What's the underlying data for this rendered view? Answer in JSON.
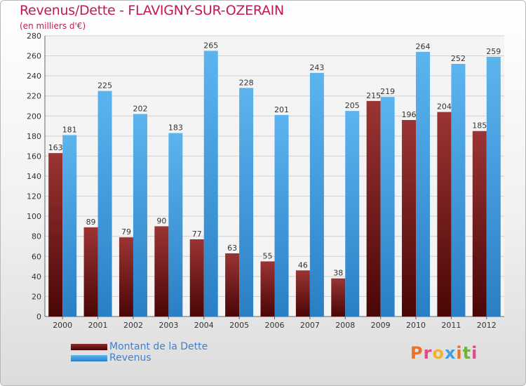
{
  "title": "Revenus/Dette - FLAVIGNY-SUR-OZERAIN",
  "subtitle": "(en milliers d'€)",
  "brand": {
    "text": "Proxiti",
    "colors": [
      "#e8742a",
      "#e04a8a",
      "#f1b52a",
      "#3f9fe0",
      "#e8742a",
      "#6cb33f",
      "#e04a8a"
    ]
  },
  "colors": {
    "dette": "#7a1a1a",
    "revenus": "#3d9be0",
    "axis_text": "#333333",
    "grid": "#d0d0d0"
  },
  "chart_data": {
    "type": "bar",
    "categories": [
      "2000",
      "2001",
      "2002",
      "2003",
      "2004",
      "2005",
      "2006",
      "2007",
      "2008",
      "2009",
      "2010",
      "2011",
      "2012"
    ],
    "series": [
      {
        "name": "Montant de la Dette",
        "values": [
          163,
          89,
          79,
          90,
          77,
          63,
          55,
          46,
          38,
          215,
          196,
          204,
          185
        ]
      },
      {
        "name": "Revenus",
        "values": [
          181,
          225,
          202,
          183,
          265,
          228,
          201,
          243,
          205,
          219,
          264,
          252,
          259
        ]
      }
    ],
    "ylim": [
      0,
      280
    ],
    "yticks": [
      0,
      20,
      40,
      60,
      80,
      100,
      120,
      140,
      160,
      180,
      200,
      220,
      240,
      260,
      280
    ],
    "grid": true,
    "legend_position": "bottom-left"
  }
}
